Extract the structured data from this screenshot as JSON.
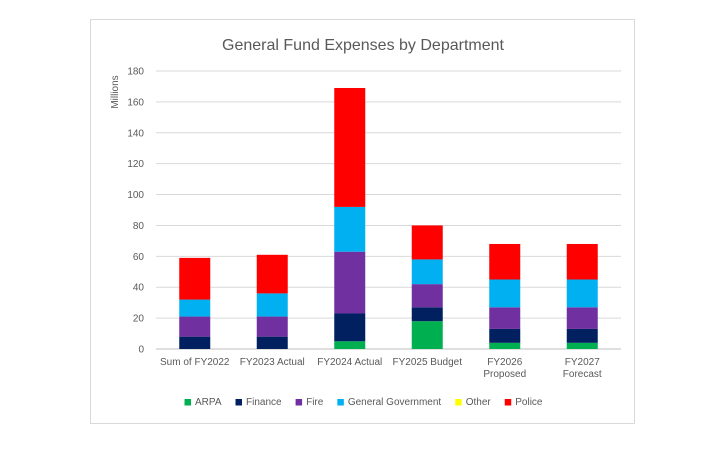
{
  "chart_data": {
    "type": "bar",
    "stacked": true,
    "title": "General Fund Expenses by Department",
    "ylabel": "Millions",
    "xlabel": "",
    "ylim": [
      0,
      180
    ],
    "yticks": [
      0,
      20,
      40,
      60,
      80,
      100,
      120,
      140,
      160,
      180
    ],
    "grid": true,
    "legend_position": "bottom",
    "categories": [
      [
        "Sum of FY2022"
      ],
      [
        "FY2023 Actual"
      ],
      [
        "FY2024 Actual"
      ],
      [
        "FY2025 Budget"
      ],
      [
        "FY2026",
        "Proposed"
      ],
      [
        "FY2027",
        "Forecast"
      ]
    ],
    "series": [
      {
        "name": "ARPA",
        "color": "#00b050",
        "values": [
          0,
          0,
          5,
          18,
          4,
          4
        ]
      },
      {
        "name": "Finance",
        "color": "#002060",
        "values": [
          8,
          8,
          18,
          9,
          9,
          9
        ]
      },
      {
        "name": "Fire",
        "color": "#7030a0",
        "values": [
          13,
          13,
          40,
          15,
          14,
          14
        ]
      },
      {
        "name": "General Government",
        "color": "#00b0f0",
        "values": [
          11,
          15,
          29,
          16,
          18,
          18
        ]
      },
      {
        "name": "Other",
        "color": "#ffff00",
        "values": [
          0,
          0,
          0,
          0,
          0,
          0
        ]
      },
      {
        "name": "Police",
        "color": "#ff0000",
        "values": [
          27,
          25,
          77,
          22,
          23,
          23
        ]
      }
    ]
  }
}
